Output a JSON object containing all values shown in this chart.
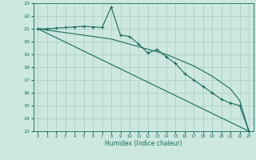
{
  "xlabel": "Humidex (Indice chaleur)",
  "bg_color": "#cce8e0",
  "grid_color": "#aaccc4",
  "line_color": "#1a6b5a",
  "xlim": [
    -0.5,
    23.5
  ],
  "ylim": [
    13,
    23
  ],
  "xticks": [
    0,
    1,
    2,
    3,
    4,
    5,
    6,
    7,
    8,
    9,
    10,
    11,
    12,
    13,
    14,
    15,
    16,
    17,
    18,
    19,
    20,
    21,
    22,
    23
  ],
  "yticks": [
    13,
    14,
    15,
    16,
    17,
    18,
    19,
    20,
    21,
    22,
    23
  ],
  "series1_x": [
    0,
    1,
    2,
    3,
    4,
    5,
    6,
    7,
    8,
    9,
    10,
    11,
    12,
    13,
    14,
    15,
    16,
    17,
    18,
    19,
    20,
    21,
    22,
    23
  ],
  "series1_y": [
    21.0,
    21.0,
    21.05,
    21.1,
    21.15,
    21.2,
    21.15,
    21.1,
    22.7,
    20.5,
    20.4,
    19.8,
    19.1,
    19.4,
    18.8,
    18.3,
    17.5,
    17.0,
    16.5,
    16.0,
    15.5,
    15.2,
    15.0,
    13.0
  ],
  "series2_x": [
    0,
    1,
    2,
    3,
    4,
    5,
    6,
    7,
    8,
    9,
    10,
    11,
    12,
    13,
    14,
    15,
    16,
    17,
    18,
    19,
    20,
    21,
    22,
    23
  ],
  "series2_y": [
    21.0,
    20.9,
    20.8,
    20.7,
    20.6,
    20.5,
    20.4,
    20.3,
    20.2,
    20.0,
    19.8,
    19.6,
    19.4,
    19.2,
    19.0,
    18.7,
    18.4,
    18.1,
    17.7,
    17.3,
    16.8,
    16.3,
    15.4,
    13.0
  ],
  "series3_x": [
    0,
    23
  ],
  "series3_y": [
    21.0,
    13.0
  ]
}
